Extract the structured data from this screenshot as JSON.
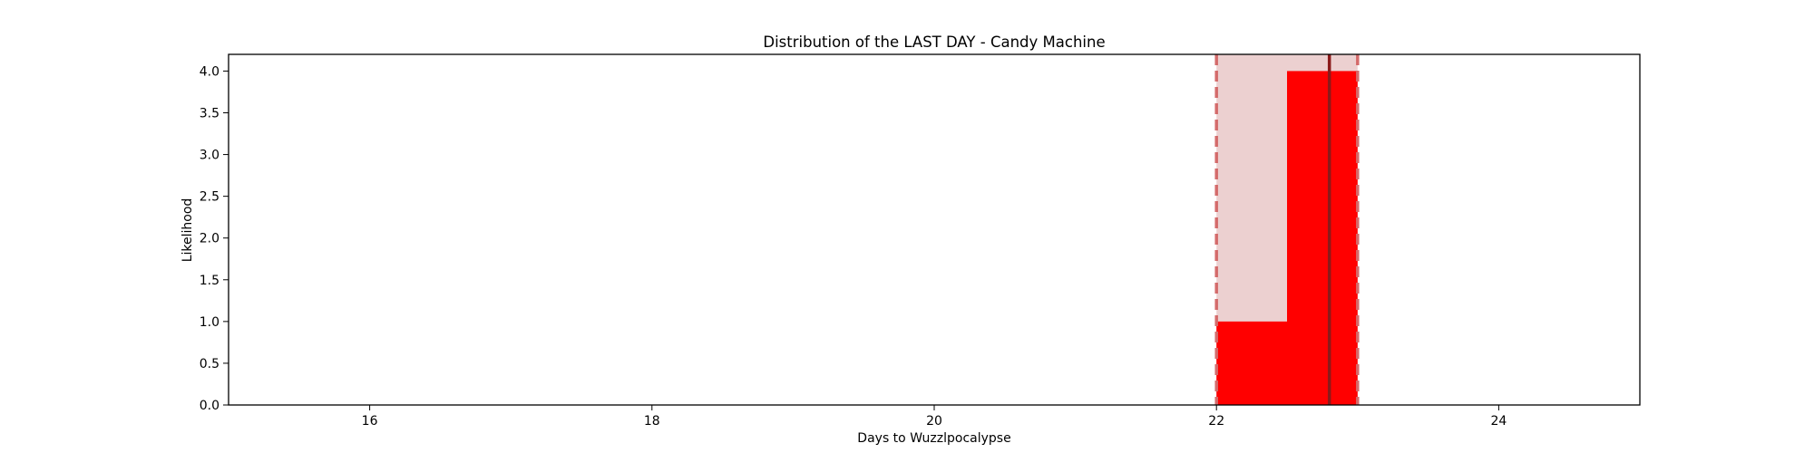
{
  "chart_data": {
    "type": "bar",
    "title": "Distribution of the LAST DAY - Candy Machine",
    "xlabel": "Days to Wuzzlpocalypse",
    "ylabel": "Likelihood",
    "xlim": [
      15,
      25
    ],
    "ylim": [
      0,
      4.2
    ],
    "xticks": [
      16,
      18,
      20,
      22,
      24
    ],
    "xtick_labels": [
      "16",
      "18",
      "20",
      "22",
      "24"
    ],
    "yticks": [
      0,
      0.5,
      1,
      1.5,
      2,
      2.5,
      3,
      3.5,
      4
    ],
    "ytick_labels": [
      "0.0",
      "0.5",
      "1.0",
      "1.5",
      "2.0",
      "2.5",
      "3.0",
      "3.5",
      "4.0"
    ],
    "bars": [
      {
        "x_start": 22.0,
        "x_end": 22.5,
        "value": 1.0
      },
      {
        "x_start": 22.5,
        "x_end": 23.0,
        "value": 4.0
      }
    ],
    "interval": {
      "lower": 22.0,
      "upper": 23.0
    },
    "marker_line": 22.8,
    "grid": false,
    "colors": {
      "bar": "#ff0000",
      "interval_fill": "#ecd0d0",
      "interval_edge": "#d46b6b",
      "marker_line": "#8b1a1a"
    }
  }
}
